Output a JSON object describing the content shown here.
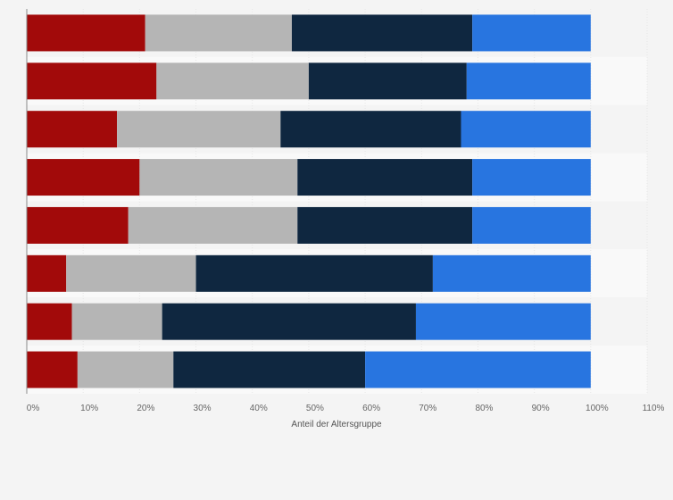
{
  "chart_data": {
    "type": "bar",
    "orientation": "horizontal",
    "stacked": true,
    "categories": [
      "",
      "",
      "",
      "",
      "",
      "",
      "",
      ""
    ],
    "series": [
      {
        "color": "#a20a0a",
        "values": [
          21,
          23,
          16,
          20,
          18,
          7,
          8,
          9
        ]
      },
      {
        "color": "#b5b5b5",
        "values": [
          26,
          27,
          29,
          28,
          30,
          23,
          16,
          17
        ]
      },
      {
        "color": "#0f2740",
        "values": [
          32,
          28,
          32,
          31,
          31,
          42,
          45,
          34
        ]
      },
      {
        "color": "#2875e0",
        "values": [
          21,
          22,
          23,
          21,
          21,
          28,
          31,
          40
        ]
      }
    ],
    "title": "",
    "xlabel": "Anteil der Altersgruppe",
    "ylabel": "",
    "xlim": [
      0,
      110
    ],
    "xticks": [
      0,
      10,
      20,
      30,
      40,
      50,
      60,
      70,
      80,
      90,
      100,
      110
    ],
    "xtick_labels": [
      "0%",
      "10%",
      "20%",
      "30%",
      "40%",
      "50%",
      "60%",
      "70%",
      "80%",
      "90%",
      "100%",
      "110%"
    ],
    "grid": true,
    "legend": "none"
  }
}
